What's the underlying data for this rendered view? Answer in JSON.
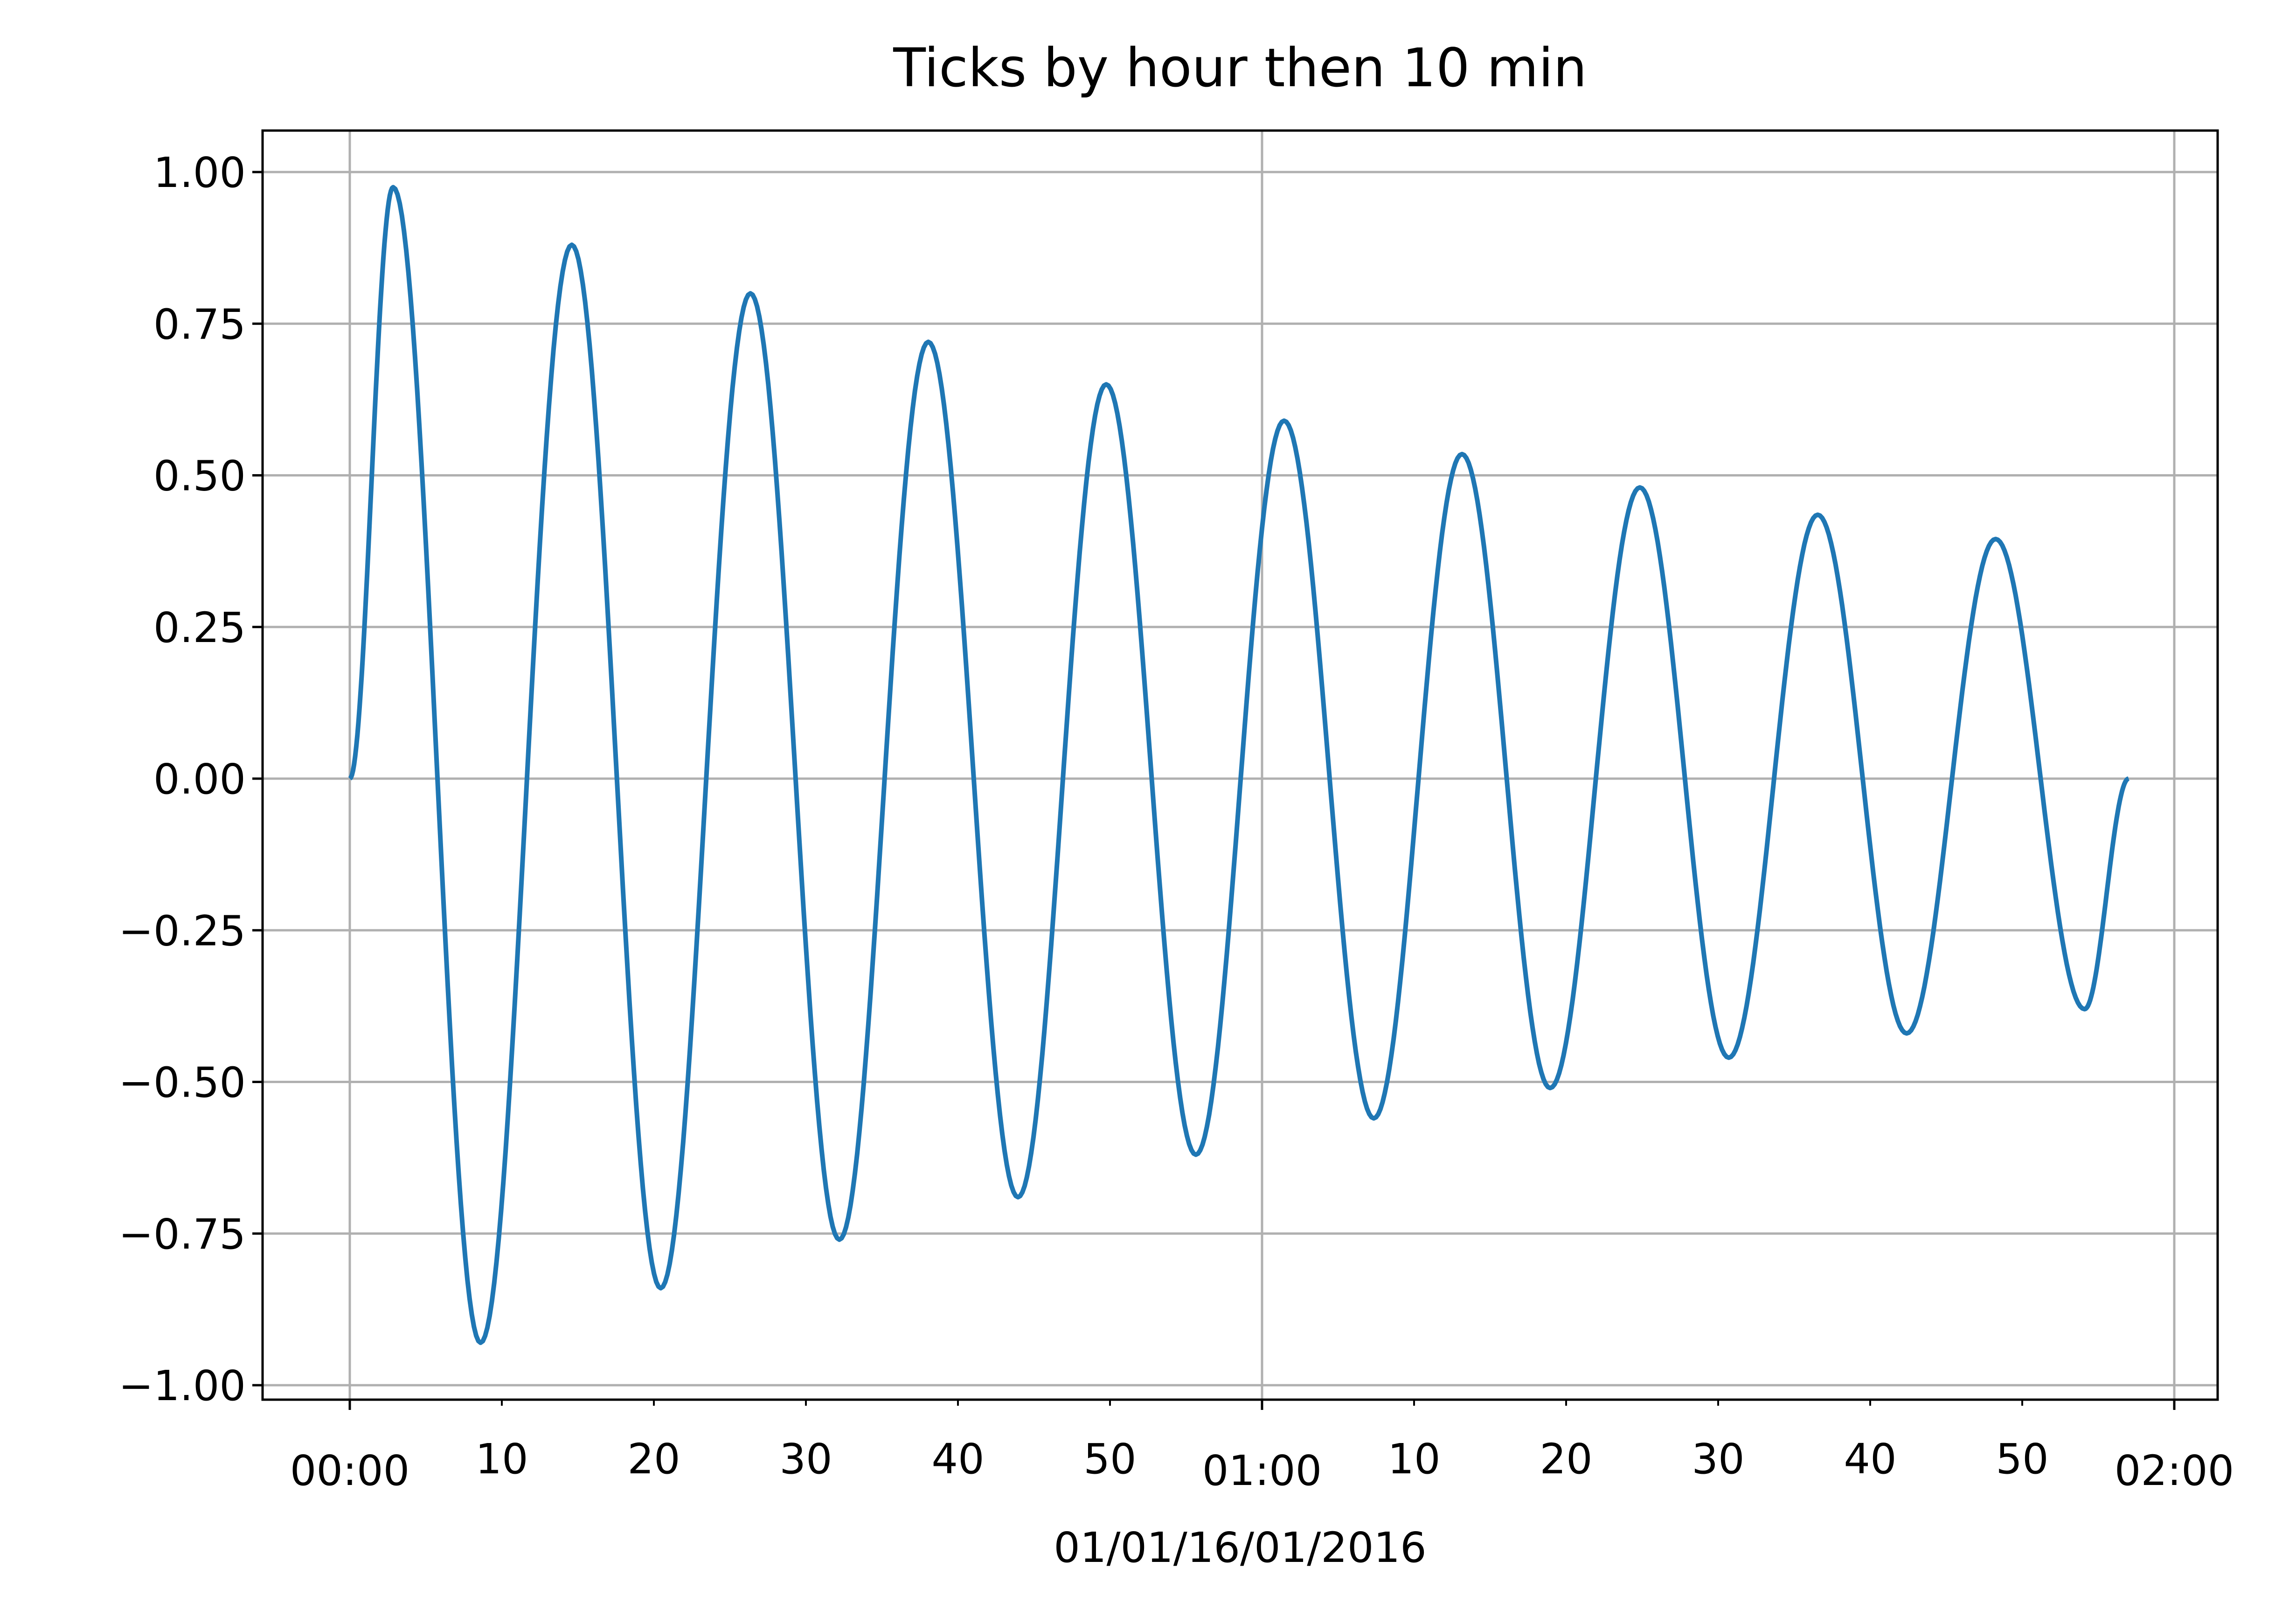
{
  "chart_data": {
    "type": "line",
    "title": "Ticks by hour then 10 min",
    "xlabel": "01/01/16/01/2016",
    "ylabel": "",
    "xlim": [
      "2016-01-01T00:00",
      "2016-01-01T02:00"
    ],
    "ylim": [
      -1.05,
      1.07
    ],
    "grid": true,
    "x_ticks_major": [
      {
        "time": "00:00",
        "label": "00:00"
      },
      {
        "time": "01:00",
        "label": "01:00"
      },
      {
        "time": "02:00",
        "label": "02:00"
      }
    ],
    "x_ticks_minor": [
      {
        "time": "00:10",
        "label": "10"
      },
      {
        "time": "00:20",
        "label": "20"
      },
      {
        "time": "00:30",
        "label": "30"
      },
      {
        "time": "00:40",
        "label": "40"
      },
      {
        "time": "00:50",
        "label": "50"
      },
      {
        "time": "01:10",
        "label": "10"
      },
      {
        "time": "01:20",
        "label": "20"
      },
      {
        "time": "01:30",
        "label": "30"
      },
      {
        "time": "01:40",
        "label": "40"
      },
      {
        "time": "01:50",
        "label": "50"
      }
    ],
    "y_ticks": [
      {
        "value": 1.0,
        "label": "1.00"
      },
      {
        "value": 0.75,
        "label": "0.75"
      },
      {
        "value": 0.5,
        "label": "0.50"
      },
      {
        "value": 0.25,
        "label": "0.25"
      },
      {
        "value": 0.0,
        "label": "0.00"
      },
      {
        "value": -0.25,
        "label": "−0.25"
      },
      {
        "value": -0.5,
        "label": "−0.50"
      },
      {
        "value": -0.75,
        "label": "−0.75"
      },
      {
        "value": -1.0,
        "label": "−1.00"
      }
    ],
    "series": [
      {
        "color": "#1f77b4",
        "x_unit": "minutes after 00:00",
        "points": [
          [
            0,
            0.0
          ],
          [
            2.85,
            0.975
          ],
          [
            8.6,
            -0.93
          ],
          [
            14.6,
            0.88
          ],
          [
            20.45,
            -0.84
          ],
          [
            26.35,
            0.8
          ],
          [
            32.2,
            -0.76
          ],
          [
            38.05,
            0.72
          ],
          [
            43.95,
            -0.69
          ],
          [
            49.75,
            0.65
          ],
          [
            55.65,
            -0.62
          ],
          [
            61.45,
            0.59
          ],
          [
            67.35,
            -0.56
          ],
          [
            73.15,
            0.535
          ],
          [
            78.95,
            -0.51
          ],
          [
            84.85,
            0.48
          ],
          [
            90.7,
            -0.46
          ],
          [
            96.55,
            0.435
          ],
          [
            102.4,
            -0.42
          ],
          [
            108.25,
            0.395
          ],
          [
            114.1,
            -0.38
          ],
          [
            117.0,
            0.0
          ]
        ]
      }
    ]
  }
}
